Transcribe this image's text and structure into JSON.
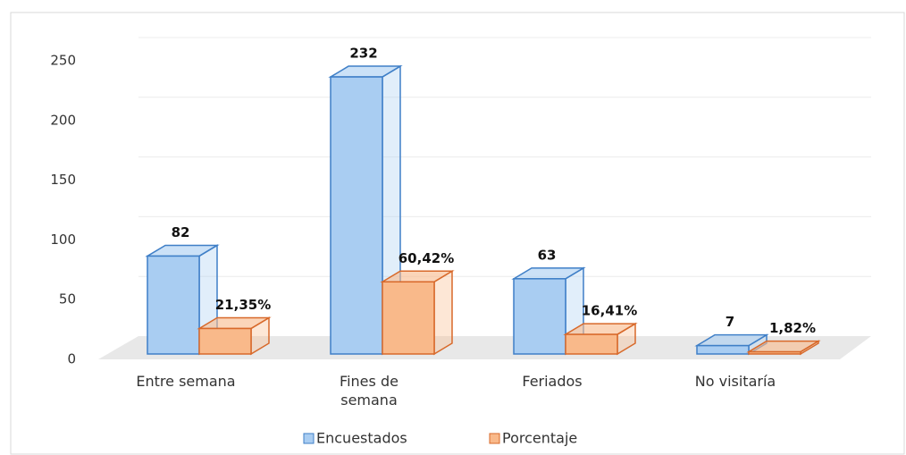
{
  "chart_data": {
    "type": "bar3d",
    "categories": [
      "Entre semana",
      "Fines de semana",
      "Feriados",
      "No visitaría"
    ],
    "series": [
      {
        "name": "Encuestados",
        "color": "#a9cdf2",
        "values": [
          82,
          232,
          63,
          7
        ]
      },
      {
        "name": "Porcentaje",
        "color": "#f9b98a",
        "values": [
          21.35,
          60.42,
          16.41,
          1.82
        ],
        "value_labels": [
          "21,35%",
          "60,42%",
          "16,41%",
          "1,82%"
        ]
      }
    ],
    "ylim": [
      0,
      250
    ],
    "yticks": [
      0,
      50,
      100,
      150,
      200,
      250
    ],
    "grid": true,
    "legend": "bottom"
  }
}
